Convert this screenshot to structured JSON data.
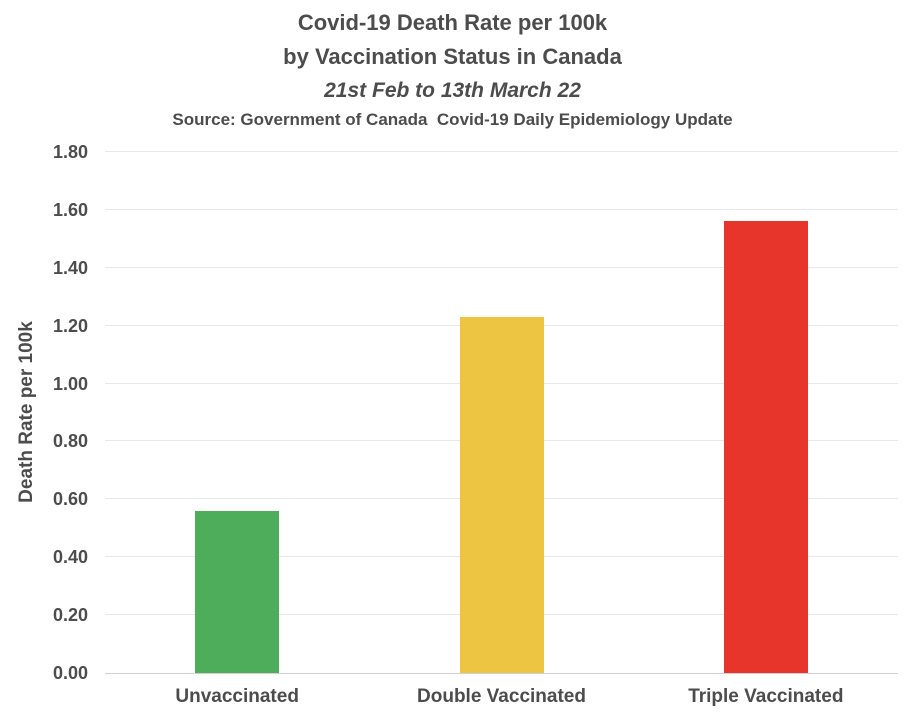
{
  "title": {
    "line1": "Covid-19 Death Rate per 100k",
    "line2": "by Vaccination Status in Canada",
    "subtitle": "21st Feb to 13th March 22",
    "source": "Source: Government of Canada  Covid-19 Daily Epidemiology Update"
  },
  "chart_data": {
    "type": "bar",
    "title": "Covid-19 Death Rate per 100k by Vaccination Status in Canada, 21st Feb to 13th March 22",
    "categories": [
      "Unvaccinated",
      "Double Vaccinated",
      "Triple Vaccinated"
    ],
    "values": [
      0.56,
      1.23,
      1.56
    ],
    "bar_colors": [
      "#4EAD5B",
      "#EEC443",
      "#E7352B"
    ],
    "xlabel": "",
    "ylabel": "Death Rate per 100k",
    "ylim": [
      0,
      1.8
    ],
    "ytick_step": 0.2,
    "ytick_decimals": 2,
    "grid": true,
    "legend": "none",
    "gridline_color": "#e8e8e8",
    "axis_line_color": "#d2d2d2",
    "text_color": "#4c4c4c",
    "background_color": "#ffffff"
  }
}
